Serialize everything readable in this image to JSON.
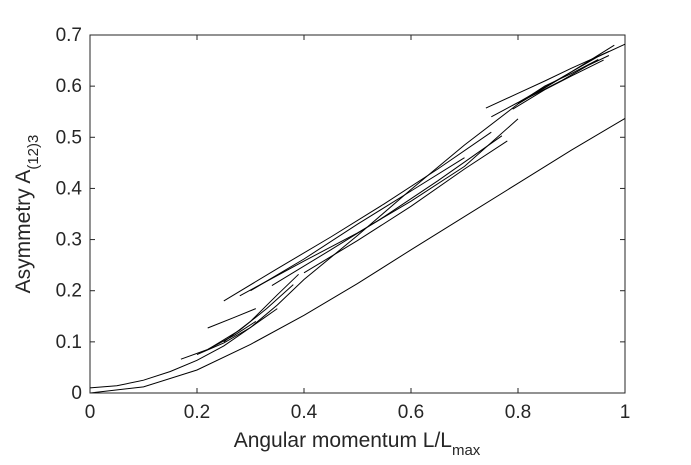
{
  "chart_data": {
    "type": "line",
    "title": "",
    "xlabel": {
      "main": "Angular momentum L/L",
      "sub": "max"
    },
    "ylabel": {
      "main": "Asymmetry A",
      "sub": "(12)3"
    },
    "xlim": [
      0,
      1
    ],
    "ylim": [
      0,
      0.7
    ],
    "xticks": [
      "0",
      "0.2",
      "0.4",
      "0.6",
      "0.8",
      "1"
    ],
    "yticks": [
      "0",
      "0.1",
      "0.2",
      "0.3",
      "0.4",
      "0.5",
      "0.6",
      "0.7"
    ],
    "grid": false,
    "legend": "none",
    "line_color": "#000000",
    "series": [
      {
        "x": [
          0,
          0.1,
          0.2,
          0.3,
          0.4,
          0.5,
          0.6,
          0.7,
          0.8,
          0.9,
          1.0
        ],
        "y": [
          0,
          0.012,
          0.045,
          0.095,
          0.152,
          0.214,
          0.28,
          0.345,
          0.41,
          0.475,
          0.537
        ]
      },
      {
        "x": [
          0,
          0.05,
          0.1,
          0.15,
          0.2,
          0.25,
          0.3,
          0.35,
          0.4,
          0.5,
          0.6,
          0.7,
          0.8,
          0.9,
          0.95,
          1.0
        ],
        "y": [
          0.01,
          0.014,
          0.025,
          0.042,
          0.064,
          0.092,
          0.128,
          0.172,
          0.222,
          0.308,
          0.398,
          0.485,
          0.565,
          0.628,
          0.658,
          0.682
        ]
      },
      {
        "x": [
          0.17,
          0.22,
          0.27,
          0.31
        ],
        "y": [
          0.066,
          0.085,
          0.113,
          0.14
        ]
      },
      {
        "x": [
          0.2,
          0.25,
          0.3,
          0.35
        ],
        "y": [
          0.075,
          0.098,
          0.128,
          0.165
        ]
      },
      {
        "x": [
          0.22,
          0.28,
          0.33,
          0.38
        ],
        "y": [
          0.085,
          0.123,
          0.165,
          0.212
        ]
      },
      {
        "x": [
          0.25,
          0.3,
          0.35,
          0.39
        ],
        "y": [
          0.1,
          0.14,
          0.192,
          0.232
        ]
      },
      {
        "x": [
          0.22,
          0.27,
          0.31
        ],
        "y": [
          0.127,
          0.148,
          0.165
        ]
      },
      {
        "x": [
          0.25,
          0.35,
          0.45,
          0.55,
          0.65,
          0.75
        ],
        "y": [
          0.18,
          0.243,
          0.305,
          0.37,
          0.438,
          0.51
        ]
      },
      {
        "x": [
          0.28,
          0.4,
          0.5,
          0.6,
          0.7,
          0.8
        ],
        "y": [
          0.19,
          0.258,
          0.313,
          0.375,
          0.443,
          0.536
        ]
      },
      {
        "x": [
          0.3,
          0.4,
          0.5,
          0.6,
          0.7
        ],
        "y": [
          0.2,
          0.262,
          0.33,
          0.395,
          0.46
        ]
      },
      {
        "x": [
          0.34,
          0.45,
          0.55,
          0.65,
          0.77
        ],
        "y": [
          0.21,
          0.28,
          0.345,
          0.415,
          0.503
        ]
      },
      {
        "x": [
          0.4,
          0.5,
          0.6,
          0.7,
          0.78
        ],
        "y": [
          0.235,
          0.298,
          0.365,
          0.438,
          0.493
        ]
      },
      {
        "x": [
          0.74,
          0.8,
          0.85,
          0.9,
          0.97
        ],
        "y": [
          0.557,
          0.586,
          0.61,
          0.635,
          0.668
        ]
      },
      {
        "x": [
          0.75,
          0.8,
          0.85,
          0.9,
          0.98
        ],
        "y": [
          0.54,
          0.568,
          0.598,
          0.628,
          0.68
        ]
      },
      {
        "x": [
          0.79,
          0.85,
          0.9,
          0.96
        ],
        "y": [
          0.555,
          0.593,
          0.62,
          0.651
        ]
      },
      {
        "x": [
          0.8,
          0.85,
          0.9,
          0.95
        ],
        "y": [
          0.566,
          0.6,
          0.625,
          0.652
        ]
      },
      {
        "x": [
          0.82,
          0.88,
          0.93,
          0.97
        ],
        "y": [
          0.578,
          0.61,
          0.64,
          0.66
        ]
      }
    ]
  }
}
